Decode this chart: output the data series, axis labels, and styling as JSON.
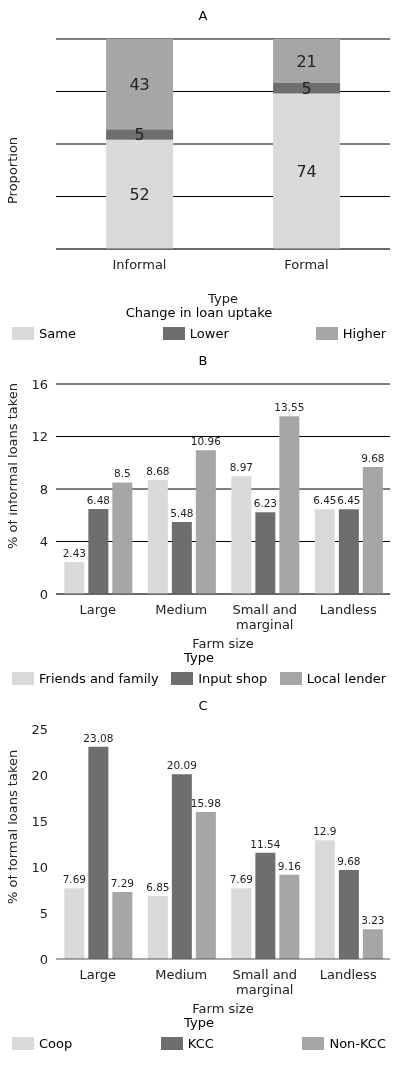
{
  "chart_data": [
    {
      "type": "bar",
      "title": "A",
      "xlabel": "Type",
      "ylabel": "Proportion",
      "legend_title": "Change in loan uptake",
      "categories": [
        "Informal",
        "Formal"
      ],
      "stacked": true,
      "data_labels": true,
      "grid": "y",
      "legend": "bottom",
      "tick_labels": "x",
      "series": [
        {
          "name": "Same",
          "color": "#d9d9d9",
          "values": [
            52,
            74
          ]
        },
        {
          "name": "Lower",
          "color": "#6e6e6e",
          "values": [
            5,
            5
          ]
        },
        {
          "name": "Higher",
          "color": "#a6a6a6",
          "values": [
            43,
            21
          ]
        }
      ]
    },
    {
      "type": "bar",
      "title": "B",
      "xlabel": "Farm size",
      "ylabel": "% of informal loans taken",
      "legend_title": "Type",
      "categories": [
        "Large",
        "Medium",
        "Small and marginal",
        "Landless"
      ],
      "data_labels": true,
      "grid": "y",
      "legend": "bottom",
      "ylim": [
        0,
        16
      ],
      "yticks": [
        0,
        4,
        8,
        12,
        16
      ],
      "series": [
        {
          "name": "Friends and family",
          "color": "#d9d9d9",
          "values": [
            2.43,
            8.68,
            8.97,
            6.45
          ]
        },
        {
          "name": "Input shop",
          "color": "#6e6e6e",
          "values": [
            6.48,
            5.48,
            6.23,
            6.45
          ]
        },
        {
          "name": "Local lender",
          "color": "#a6a6a6",
          "values": [
            8.5,
            10.96,
            13.55,
            9.68
          ]
        }
      ]
    },
    {
      "type": "bar",
      "title": "C",
      "xlabel": "Farm size",
      "ylabel": "% of formal loans taken",
      "legend_title": "Type",
      "categories": [
        "Large",
        "Medium",
        "Small and marginal",
        "Landless"
      ],
      "data_labels": true,
      "grid": false,
      "legend": "bottom",
      "ylim": [
        0,
        25
      ],
      "yticks": [
        0,
        5,
        10,
        15,
        20,
        25
      ],
      "series": [
        {
          "name": "Coop",
          "color": "#d9d9d9",
          "values": [
            7.69,
            6.85,
            7.69,
            12.9
          ]
        },
        {
          "name": "KCC",
          "color": "#6e6e6e",
          "values": [
            23.08,
            20.09,
            11.54,
            9.68
          ]
        },
        {
          "name": "Non-KCC",
          "color": "#a6a6a6",
          "values": [
            7.29,
            15.98,
            9.16,
            3.23
          ]
        }
      ]
    }
  ]
}
